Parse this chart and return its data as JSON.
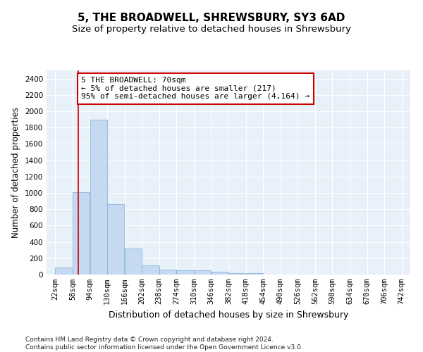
{
  "title": "5, THE BROADWELL, SHREWSBURY, SY3 6AD",
  "subtitle": "Size of property relative to detached houses in Shrewsbury",
  "xlabel": "Distribution of detached houses by size in Shrewsbury",
  "ylabel": "Number of detached properties",
  "bar_color": "#c5d9f0",
  "bar_edge_color": "#7aaddb",
  "background_color": "#e8f0fa",
  "grid_color": "#ffffff",
  "annotation_box_color": "#cc0000",
  "vline_color": "#cc0000",
  "vline_x": 70,
  "annotation_text": "5 THE BROADWELL: 70sqm\n← 5% of detached houses are smaller (217)\n95% of semi-detached houses are larger (4,164) →",
  "bin_edges": [
    22,
    58,
    94,
    130,
    166,
    202,
    238,
    274,
    310,
    346,
    382,
    418,
    454,
    490,
    526,
    562,
    598,
    634,
    670,
    706,
    742
  ],
  "bar_heights": [
    90,
    1010,
    1900,
    860,
    315,
    115,
    60,
    55,
    50,
    35,
    20,
    20,
    0,
    0,
    0,
    0,
    0,
    0,
    0,
    0
  ],
  "ylim": [
    0,
    2500
  ],
  "yticks": [
    0,
    200,
    400,
    600,
    800,
    1000,
    1200,
    1400,
    1600,
    1800,
    2000,
    2200,
    2400
  ],
  "footnote": "Contains HM Land Registry data © Crown copyright and database right 2024.\nContains public sector information licensed under the Open Government Licence v3.0.",
  "title_fontsize": 11,
  "subtitle_fontsize": 9.5,
  "xlabel_fontsize": 9,
  "ylabel_fontsize": 8.5,
  "tick_fontsize": 7.5,
  "annotation_fontsize": 8,
  "footnote_fontsize": 6.5
}
